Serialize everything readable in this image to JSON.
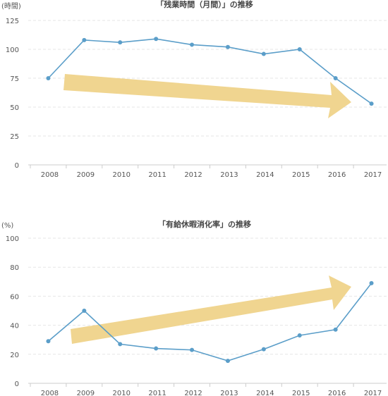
{
  "colors": {
    "line": "#5b9ec9",
    "arrow": "#f0d590",
    "grid": "#e6e6e6",
    "axis": "#cccccc"
  },
  "chart_data": [
    {
      "type": "line",
      "title": "「残業時間（月間）」の推移",
      "ylabel": "(時間)",
      "categories": [
        "2008",
        "2009",
        "2010",
        "2011",
        "2012",
        "2013",
        "2014",
        "2015",
        "2016",
        "2017"
      ],
      "values": [
        75,
        108,
        106,
        109,
        104,
        102,
        96,
        100,
        75,
        53
      ],
      "ylim": [
        0,
        125
      ],
      "yticks": [
        0,
        25,
        50,
        75,
        100,
        125
      ],
      "grid": true,
      "trend_arrow": "down"
    },
    {
      "type": "line",
      "title": "「有給休暇消化率」の推移",
      "ylabel": "(%)",
      "categories": [
        "2008",
        "2009",
        "2010",
        "2011",
        "2012",
        "2013",
        "2014",
        "2015",
        "2016",
        "2017"
      ],
      "values": [
        29,
        50,
        27,
        24,
        23,
        15.5,
        23.5,
        33,
        37,
        69
      ],
      "ylim": [
        0,
        100
      ],
      "yticks": [
        0,
        20,
        40,
        60,
        80,
        100
      ],
      "grid": true,
      "trend_arrow": "up"
    }
  ]
}
